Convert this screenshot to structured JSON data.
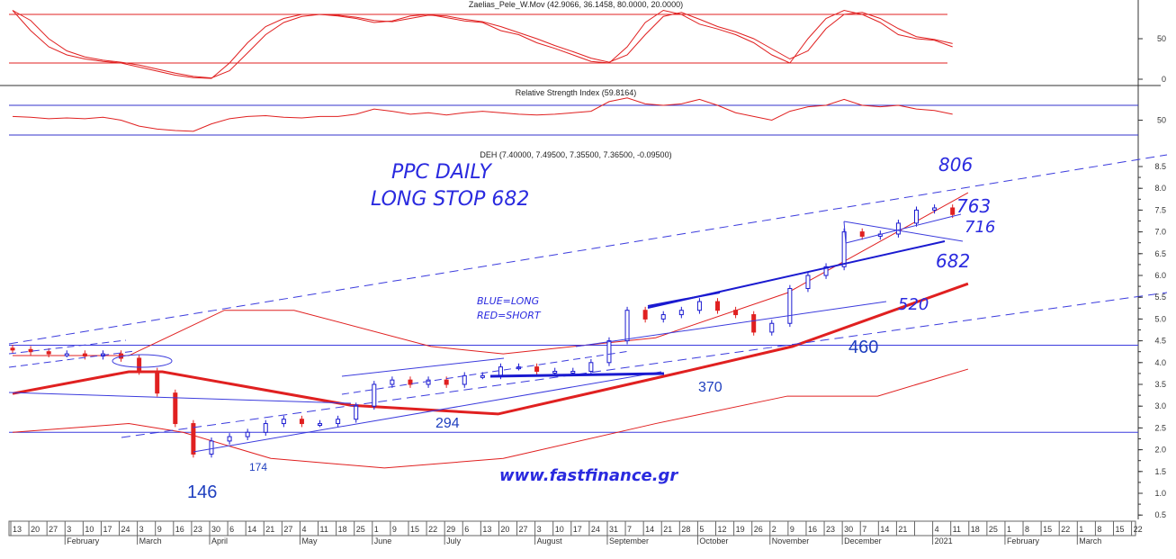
{
  "chart_data": [
    {
      "type": "line",
      "title": "Zaelias_Pele_W.Mov (42.9066, 36.1458, 80.0000, 20.0000)",
      "ylim": [
        0,
        95
      ],
      "yticks": [
        "50",
        "0"
      ],
      "levels": [
        80,
        20
      ],
      "series": [
        {
          "values": [
            85,
            60,
            40,
            30,
            25,
            22,
            20,
            15,
            10,
            5,
            2,
            1,
            20,
            45,
            65,
            75,
            80,
            80,
            78,
            75,
            70,
            72,
            78,
            80,
            76,
            72,
            70,
            60,
            55,
            45,
            38,
            30,
            22,
            20,
            40,
            70,
            85,
            80,
            68,
            62,
            55,
            45,
            30,
            20,
            50,
            75,
            85,
            80,
            70,
            55,
            50,
            48,
            40
          ]
        }
      ],
      "color": "#e02020"
    },
    {
      "type": "line",
      "title": "Relative Strength Index (59.8164)",
      "ylim": [
        25,
        75
      ],
      "yticks": [
        "50"
      ],
      "levels": [
        70,
        30
      ],
      "series": [
        {
          "values": [
            55,
            54,
            52,
            53,
            52,
            54,
            50,
            42,
            38,
            36,
            35,
            45,
            52,
            55,
            56,
            54,
            53,
            55,
            55,
            58,
            65,
            62,
            58,
            60,
            57,
            60,
            62,
            60,
            58,
            57,
            58,
            60,
            62,
            75,
            80,
            72,
            70,
            72,
            78,
            70,
            60,
            55,
            50,
            62,
            68,
            70,
            78,
            70,
            68,
            70,
            65,
            63,
            58
          ]
        }
      ],
      "color": "#e02020",
      "level_color": "#3333cc"
    },
    {
      "type": "candlestick",
      "title": "DEH (7.40000, 7.49500, 7.35500, 7.36500, -0.09500)",
      "ylim": [
        0.3,
        8.7
      ],
      "yticks": [
        "8.5",
        "8.0",
        "7.5",
        "7.0",
        "6.5",
        "6.0",
        "5.5",
        "5.0",
        "4.5",
        "4.0",
        "3.5",
        "3.0",
        "2.5",
        "2.0",
        "1.5",
        "1.0",
        "0.5"
      ],
      "x": [
        "2020-01-13",
        "2020-01-20",
        "2020-01-27",
        "2020-02-03",
        "2020-02-10",
        "2020-02-17",
        "2020-02-24",
        "2020-03-02",
        "2020-03-09",
        "2020-03-16",
        "2020-03-23",
        "2020-03-30",
        "2020-04-06",
        "2020-04-13",
        "2020-04-20",
        "2020-04-27",
        "2020-05-04",
        "2020-05-11",
        "2020-05-18",
        "2020-05-25",
        "2020-06-01",
        "2020-06-08",
        "2020-06-15",
        "2020-06-22",
        "2020-06-29",
        "2020-07-06",
        "2020-07-13",
        "2020-07-20",
        "2020-07-27",
        "2020-08-03",
        "2020-08-10",
        "2020-08-17",
        "2020-08-24",
        "2020-08-31",
        "2020-09-07",
        "2020-09-14",
        "2020-09-21",
        "2020-09-28",
        "2020-10-05",
        "2020-10-12",
        "2020-10-19",
        "2020-10-26",
        "2020-11-02",
        "2020-11-09",
        "2020-11-16",
        "2020-11-23",
        "2020-11-30",
        "2020-12-07",
        "2020-12-14",
        "2020-12-21",
        "2020-12-28",
        "2021-01-04",
        "2021-01-11"
      ],
      "close": [
        4.3,
        4.25,
        4.2,
        4.2,
        4.15,
        4.2,
        4.1,
        3.8,
        3.3,
        2.6,
        1.9,
        2.2,
        2.3,
        2.4,
        2.6,
        2.7,
        2.6,
        2.6,
        2.7,
        3.0,
        3.5,
        3.6,
        3.5,
        3.6,
        3.5,
        3.7,
        3.7,
        3.9,
        3.9,
        3.8,
        3.8,
        3.8,
        4.0,
        4.5,
        5.2,
        5.0,
        5.1,
        5.2,
        5.4,
        5.2,
        5.1,
        4.7,
        4.9,
        5.7,
        6.0,
        6.2,
        7.0,
        6.9,
        6.95,
        7.2,
        7.5,
        7.55,
        7.4
      ],
      "up_color": "#1a1ad0",
      "down_color": "#e02020",
      "moving_average_thick": {
        "x": [
          "2020-01-13",
          "2020-02-27",
          "2020-03-11",
          "2020-05-23",
          "2020-07-19",
          "2020-09-26",
          "2020-11-10",
          "2021-01-17"
        ],
        "y": [
          3.29,
          3.79,
          3.79,
          3.02,
          2.82,
          3.75,
          4.37,
          5.81
        ]
      },
      "band_upper": {
        "x": [
          "2020-01-13",
          "2020-02-27",
          "2020-04-04",
          "2020-05-01",
          "2020-06-23",
          "2020-07-21",
          "2020-09-18",
          "2020-11-08",
          "2021-01-17"
        ],
        "y": [
          4.16,
          4.16,
          5.2,
          5.2,
          4.37,
          4.2,
          4.57,
          5.6,
          7.9
        ]
      },
      "band_lower": {
        "x": [
          "2020-01-13",
          "2020-02-27",
          "2020-03-19",
          "2020-04-22",
          "2020-06-05",
          "2020-07-21",
          "2020-09-18",
          "2020-11-08",
          "2020-12-13",
          "2021-01-17"
        ],
        "y": [
          2.4,
          2.6,
          2.4,
          1.8,
          1.58,
          1.8,
          2.6,
          3.23,
          3.23,
          3.85
        ]
      },
      "horizontal_levels": [
        4.4,
        2.4
      ]
    }
  ],
  "x_axis": {
    "week_labels": [
      "13",
      "20",
      "27",
      "3",
      "10",
      "17",
      "24",
      "3",
      "9",
      "16",
      "23",
      "30",
      "6",
      "14",
      "21",
      "27",
      "4",
      "11",
      "18",
      "25",
      "1",
      "9",
      "15",
      "22",
      "29",
      "6",
      "13",
      "20",
      "27",
      "3",
      "10",
      "17",
      "24",
      "31",
      "7",
      "14",
      "21",
      "28",
      "5",
      "12",
      "19",
      "26",
      "2",
      "9",
      "16",
      "23",
      "30",
      "7",
      "14",
      "21",
      "",
      "4",
      "11",
      "18",
      "25",
      "1",
      "8",
      "15",
      "22",
      "1",
      "8",
      "15",
      "22"
    ],
    "months": [
      {
        "label": "February",
        "week": 3
      },
      {
        "label": "March",
        "week": 7
      },
      {
        "label": "April",
        "week": 11
      },
      {
        "label": "May",
        "week": 16
      },
      {
        "label": "June",
        "week": 20
      },
      {
        "label": "July",
        "week": 24
      },
      {
        "label": "August",
        "week": 29
      },
      {
        "label": "September",
        "week": 33
      },
      {
        "label": "October",
        "week": 38
      },
      {
        "label": "November",
        "week": 42
      },
      {
        "label": "December",
        "week": 46
      },
      {
        "label": "2021",
        "week": 51
      },
      {
        "label": "February",
        "week": 55
      },
      {
        "label": "March",
        "week": 59
      }
    ]
  },
  "annotations": {
    "title_line1": "PPC DAILY",
    "title_line2": "LONG STOP 682",
    "legend_blue": "BLUE=LONG",
    "legend_red": "RED=SHORT",
    "website": "www.fastfinance.gr",
    "levels": {
      "l806": "806",
      "l763": "763",
      "l716": "716",
      "l682": "682",
      "l520": "520",
      "l460": "460",
      "l370": "370",
      "l294": "294",
      "l174": "174",
      "l146": "146"
    }
  }
}
